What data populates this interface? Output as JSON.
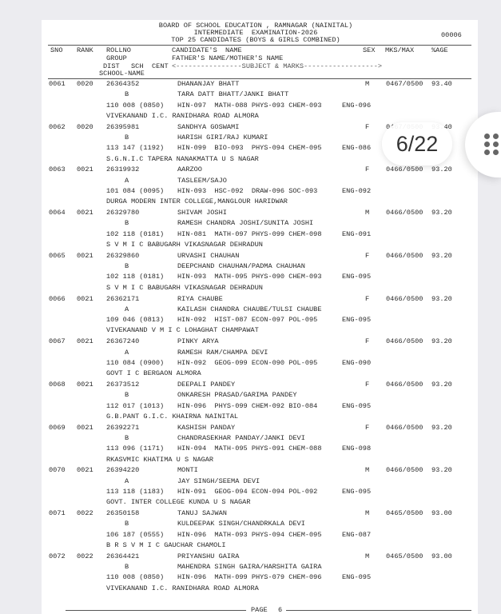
{
  "header": {
    "line1": "BOARD OF SCHOOL EDUCATION , RAMNAGAR (NAINITAL)",
    "line2": "INTERMEDIATE  EXAMINATION-2026",
    "line3": "TOP 25 CANDIDATES (BOYS & GIRLS COMBINED)",
    "page_code": "00006"
  },
  "columns": {
    "sno": "SNO",
    "rank": "RANK",
    "rollno": "ROLLNO",
    "name": "CANDIDATE'S  NAME",
    "sex": "SEX",
    "mks": "MKS/MAX",
    "pct": "%AGE",
    "group": "GROUP",
    "parents": "FATHER'S NAME/MOTHER'S NAME",
    "dist": "DIST",
    "sch": "SCH",
    "cent": "CENT",
    "subjects": "<----------------SUBJECT & MARKS------------------>",
    "school": "SCHOOL-NAME"
  },
  "records": [
    {
      "sno": "0061",
      "rank": "0020",
      "roll": "26364352",
      "name": "DHANANJAY BHATT",
      "sex": "M",
      "mks": "0467/0500",
      "pct": "93.40",
      "group": "B",
      "parents": "TARA DATT BHATT/JANKI BHATT",
      "codes": "110 008 (0850)",
      "subjects": "HIN-097  MATH-088 PHYS-093 CHEM-093",
      "eng": "ENG-096",
      "school": "VIVEKANAND I.C. RANIDHARA ROAD ALMORA"
    },
    {
      "sno": "0062",
      "rank": "0020",
      "roll": "26395981",
      "name": "SANDHYA GOSWAMI",
      "sex": "F",
      "mks": "0467/0500",
      "pct": "93.40",
      "group": "B",
      "parents": "HARISH GIRI/RAJ KUMARI",
      "codes": "113 147 (1192)",
      "subjects": "HIN-099  BIO-093  PHYS-094 CHEM-095",
      "eng": "ENG-086",
      "school": "S.G.N.I.C TAPERA NANAKMATTA U S NAGAR"
    },
    {
      "sno": "0063",
      "rank": "0021",
      "roll": "26319932",
      "name": "AARZOO",
      "sex": "F",
      "mks": "0466/0500",
      "pct": "93.20",
      "group": "A",
      "parents": "TASLEEM/SAJO",
      "codes": "101 084 (0095)",
      "subjects": "HIN-093  HSC-092  DRAW-096 SOC-093",
      "eng": "ENG-092",
      "school": "DURGA MODERN INTER COLLEGE,MANGLOUR HARIDWAR"
    },
    {
      "sno": "0064",
      "rank": "0021",
      "roll": "26329780",
      "name": "SHIVAM JOSHI",
      "sex": "M",
      "mks": "0466/0500",
      "pct": "93.20",
      "group": "B",
      "parents": "RAMESH CHANDRA JOSHI/SUNITA JOSHI",
      "codes": "102 118 (0181)",
      "subjects": "HIN-081  MATH-097 PHYS-099 CHEM-098",
      "eng": "ENG-091",
      "school": "S V M I C BABUGARH VIKASNAGAR DEHRADUN"
    },
    {
      "sno": "0065",
      "rank": "0021",
      "roll": "26329860",
      "name": "URVASHI CHAUHAN",
      "sex": "F",
      "mks": "0466/0500",
      "pct": "93.20",
      "group": "B",
      "parents": "DEEPCHAND CHAUHAN/PADMA CHAUHAN",
      "codes": "102 118 (0181)",
      "subjects": "HIN-093  MATH-095 PHYS-090 CHEM-093",
      "eng": "ENG-095",
      "school": "S V M I C BABUGARH VIKASNAGAR DEHRADUN"
    },
    {
      "sno": "0066",
      "rank": "0021",
      "roll": "26362171",
      "name": "RIYA CHAUBE",
      "sex": "F",
      "mks": "0466/0500",
      "pct": "93.20",
      "group": "A",
      "parents": "KAILASH CHANDRA CHAUBE/TULSI CHAUBE",
      "codes": "109 046 (0813)",
      "subjects": "HIN-092  HIST-087 ECON-097 POL-095",
      "eng": "ENG-095",
      "school": "VIVEKANAND V M I C LOHAGHAT CHAMPAWAT"
    },
    {
      "sno": "0067",
      "rank": "0021",
      "roll": "26367240",
      "name": "PINKY ARYA",
      "sex": "F",
      "mks": "0466/0500",
      "pct": "93.20",
      "group": "A",
      "parents": "RAMESH RAM/CHAMPA DEVI",
      "codes": "110 084 (0900)",
      "subjects": "HIN-092  GEOG-099 ECON-090 POL-095",
      "eng": "ENG-090",
      "school": "GOVT I C BERGAON ALMORA"
    },
    {
      "sno": "0068",
      "rank": "0021",
      "roll": "26373512",
      "name": "DEEPALI PANDEY",
      "sex": "F",
      "mks": "0466/0500",
      "pct": "93.20",
      "group": "B",
      "parents": "ONKARESH PRASAD/GARIMA PANDEY",
      "codes": "112 017 (1013)",
      "subjects": "HIN-096  PHYS-099 CHEM-092 BIO-084",
      "eng": "ENG-095",
      "school": "G.B.PANT G.I.C. KHAIRNA NAINITAL"
    },
    {
      "sno": "0069",
      "rank": "0021",
      "roll": "26392271",
      "name": "KASHISH PANDAY",
      "sex": "F",
      "mks": "0466/0500",
      "pct": "93.20",
      "group": "B",
      "parents": "CHANDRASEKHAR PANDAY/JANKI DEVI",
      "codes": "113 096 (1171)",
      "subjects": "HIN-094  MATH-095 PHYS-091 CHEM-088",
      "eng": "ENG-098",
      "school": "RKASVMIC KHATIMA U S NAGAR"
    },
    {
      "sno": "0070",
      "rank": "0021",
      "roll": "26394220",
      "name": "MONTI",
      "sex": "M",
      "mks": "0466/0500",
      "pct": "93.20",
      "group": "A",
      "parents": "JAY SINGH/SEEMA DEVI",
      "codes": "113 118 (1183)",
      "subjects": "HIN-091  GEOG-094 ECON-094 POL-092",
      "eng": "ENG-095",
      "school": "GOVT. INTER COLLEGE KUNDA U S NAGAR"
    },
    {
      "sno": "0071",
      "rank": "0022",
      "roll": "26350158",
      "name": "TANUJ SAJWAN",
      "sex": "M",
      "mks": "0465/0500",
      "pct": "93.00",
      "group": "B",
      "parents": "KULDEEPAK SINGH/CHANDRKALA DEVI",
      "codes": "106 187 (0555)",
      "subjects": "HIN-096  MATH-093 PHYS-094 CHEM-095",
      "eng": "ENG-087",
      "school": "B R S V M I C GAUCHAR CHAMOLI"
    },
    {
      "sno": "0072",
      "rank": "0022",
      "roll": "26364421",
      "name": "PRIYANSHU GAIRA",
      "sex": "M",
      "mks": "0465/0500",
      "pct": "93.00",
      "group": "B",
      "parents": "MAHENDRA SINGH GAIRA/HARSHITA GAIRA",
      "codes": "110 008 (0850)",
      "subjects": "HIN-096  MATH-099 PHYS-079 CHEM-096",
      "eng": "ENG-095",
      "school": "VIVEKANAND I.C. RANIDHARA ROAD ALMORA"
    }
  ],
  "footer": {
    "page_label": "PAGE",
    "page_number": "6"
  },
  "viewer": {
    "page_indicator": "6/22",
    "menu_icon": "grid-dots-icon"
  }
}
